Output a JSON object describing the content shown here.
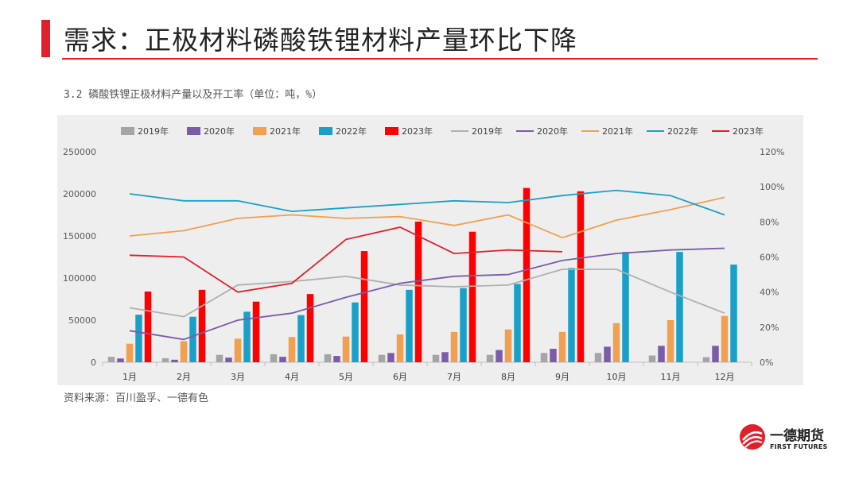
{
  "header": {
    "title": "需求：正极材料磷酸铁锂材料产量环比下降",
    "accent_color": "#e0202a"
  },
  "chart_caption": "3.2 磷酸铁锂正极材料产量以及开工率（单位：吨，%）",
  "source_note": "资料来源：百川盈孚、一德有色",
  "logo": {
    "name_cn": "一德期货",
    "name_en": "FIRST FUTURES"
  },
  "chart_data": {
    "type": "bar",
    "categories": [
      "1月",
      "2月",
      "3月",
      "4月",
      "5月",
      "6月",
      "7月",
      "8月",
      "9月",
      "10月",
      "11月",
      "12月"
    ],
    "y_left": {
      "min": 0,
      "max": 250000,
      "ticks": [
        "0",
        "50000",
        "100000",
        "150000",
        "200000",
        "250000"
      ]
    },
    "y_right": {
      "min": 0,
      "max": 120,
      "ticks": [
        "0%",
        "20%",
        "40%",
        "60%",
        "80%",
        "100%",
        "120%"
      ]
    },
    "grid": false,
    "legend_position": "top",
    "bar_series": [
      {
        "name": "2019年",
        "color": "#a5a5a5",
        "values": [
          6500,
          4800,
          8800,
          9500,
          9500,
          8800,
          8800,
          8800,
          11000,
          11000,
          8000,
          6000
        ]
      },
      {
        "name": "2020年",
        "color": "#7b5ca8",
        "values": [
          4500,
          3000,
          5500,
          6500,
          7500,
          11000,
          12000,
          14500,
          16000,
          18500,
          19500,
          19500
        ]
      },
      {
        "name": "2021年",
        "color": "#f0a050",
        "values": [
          22000,
          25000,
          28000,
          30000,
          30500,
          33000,
          36000,
          39000,
          36000,
          46500,
          50000,
          55000
        ]
      },
      {
        "name": "2022年",
        "color": "#1aa0c8",
        "values": [
          56500,
          54000,
          60000,
          56000,
          71000,
          86000,
          88000,
          93000,
          112000,
          131000,
          131000,
          116000
        ]
      },
      {
        "name": "2023年",
        "color": "#ff0000",
        "values": [
          84000,
          86000,
          72000,
          81000,
          132000,
          167000,
          155000,
          207000,
          203000,
          null,
          null,
          null
        ]
      }
    ],
    "line_series": [
      {
        "name": "2019年",
        "color": "#b0b0b0",
        "values": [
          31,
          26,
          44,
          46,
          49,
          44,
          43,
          44,
          53,
          53,
          40,
          28
        ]
      },
      {
        "name": "2020年",
        "color": "#7b5ca8",
        "values": [
          18,
          13,
          24,
          28,
          37,
          45,
          49,
          50,
          58,
          62,
          64,
          65
        ]
      },
      {
        "name": "2021年",
        "color": "#f0a050",
        "values": [
          72,
          75,
          82,
          84,
          82,
          83,
          78,
          84,
          71,
          81,
          87,
          94
        ]
      },
      {
        "name": "2022年",
        "color": "#1aa0c8",
        "values": [
          96,
          92,
          92,
          86,
          88,
          90,
          92,
          91,
          95,
          98,
          95,
          84
        ]
      },
      {
        "name": "2023年",
        "color": "#e0202a",
        "values": [
          61,
          60,
          40,
          45,
          70,
          77,
          62,
          64,
          63,
          null,
          null,
          null
        ]
      }
    ]
  }
}
